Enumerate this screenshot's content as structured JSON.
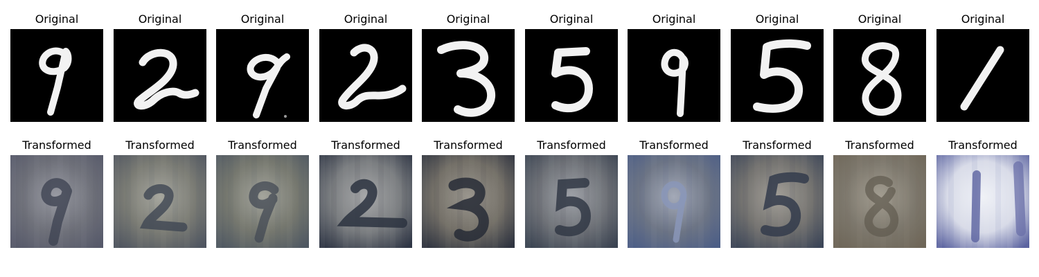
{
  "figure": {
    "rows": [
      {
        "row": "original",
        "title": "Original"
      },
      {
        "row": "transformed",
        "title": "Transformed"
      }
    ],
    "samples": [
      {
        "digit": "9",
        "original_title": "Original",
        "transformed_title": "Transformed",
        "transformed_palette": [
          "#6f717a",
          "#56596a",
          "#9a9ca4"
        ]
      },
      {
        "digit": "2",
        "original_title": "Original",
        "transformed_title": "Transformed",
        "transformed_palette": [
          "#7a7b74",
          "#4f5560",
          "#a7a79f"
        ]
      },
      {
        "digit": "9",
        "original_title": "Original",
        "transformed_title": "Transformed",
        "transformed_palette": [
          "#76786f",
          "#4f5862",
          "#a4a59d"
        ]
      },
      {
        "digit": "2",
        "original_title": "Original",
        "transformed_title": "Transformed",
        "transformed_palette": [
          "#7a7d80",
          "#2f3645",
          "#a8a9aa"
        ]
      },
      {
        "digit": "3",
        "original_title": "Original",
        "transformed_title": "Transformed",
        "transformed_palette": [
          "#747068",
          "#2f3440",
          "#9a968e"
        ]
      },
      {
        "digit": "5",
        "original_title": "Original",
        "transformed_title": "Transformed",
        "transformed_palette": [
          "#6f7278",
          "#3b4452",
          "#9fa2a8"
        ]
      },
      {
        "digit": "9",
        "original_title": "Original",
        "transformed_title": "Transformed",
        "transformed_palette": [
          "#6d7585",
          "#4c5e86",
          "#a4aab8"
        ]
      },
      {
        "digit": "5",
        "original_title": "Original",
        "transformed_title": "Transformed",
        "transformed_palette": [
          "#747370",
          "#3c4658",
          "#a29f98"
        ]
      },
      {
        "digit": "8",
        "original_title": "Original",
        "transformed_title": "Transformed",
        "transformed_palette": [
          "#7d786d",
          "#6e6658",
          "#a39e92"
        ]
      },
      {
        "digit": "1",
        "original_title": "Original",
        "transformed_title": "Transformed",
        "transformed_palette": [
          "#d8dbe8",
          "#5b63a0",
          "#f0f2f7"
        ]
      }
    ]
  }
}
